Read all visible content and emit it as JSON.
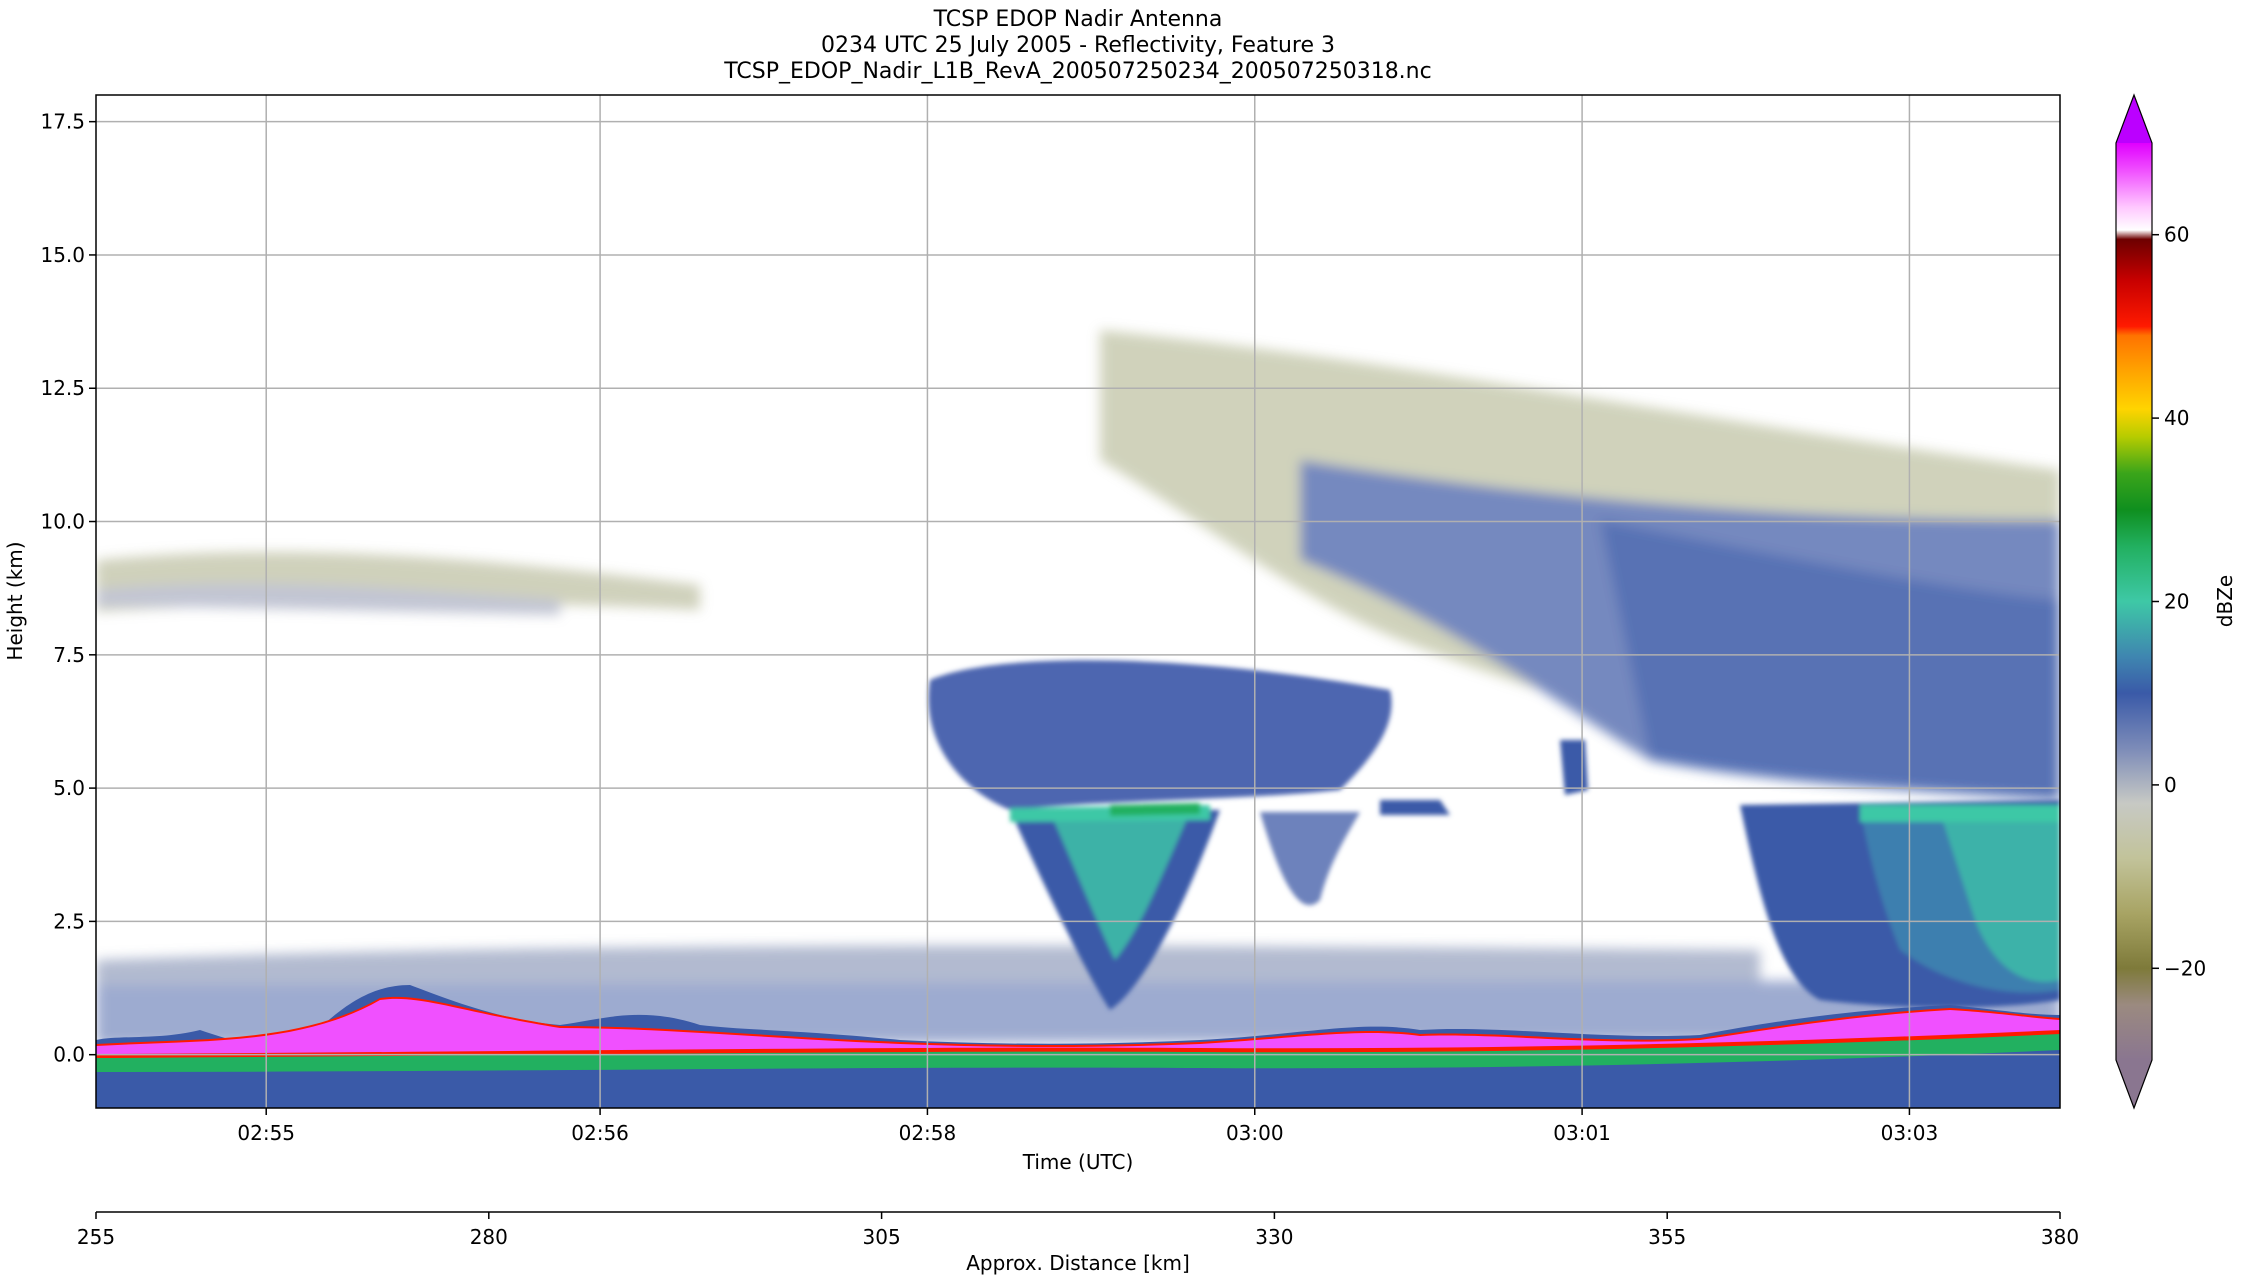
{
  "chart_data": {
    "type": "heatmap",
    "title": [
      "TCSP EDOP Nadir Antenna",
      "0234 UTC 25 July 2005 - Reflectivity, Feature 3",
      "TCSP_EDOP_Nadir_L1B_RevA_200507250234_200507250318.nc"
    ],
    "xlabel": "Time (UTC)",
    "ylabel": "Height (km)",
    "x2label": "Approx. Distance [km]",
    "colorbar_label": "dBZe",
    "xlim_minutes": [
      0,
      6.0
    ],
    "ylim": [
      -1.0,
      18.0
    ],
    "xticks": [
      {
        "label": "02:55",
        "t": 0.52
      },
      {
        "label": "02:56",
        "t": 1.54
      },
      {
        "label": "02:58",
        "t": 2.54
      },
      {
        "label": "03:00",
        "t": 3.54
      },
      {
        "label": "03:01",
        "t": 4.54
      },
      {
        "label": "03:03",
        "t": 5.54
      }
    ],
    "yticks": [
      0.0,
      2.5,
      5.0,
      7.5,
      10.0,
      12.5,
      15.0,
      17.5
    ],
    "ytick_labels": [
      "0.0",
      "2.5",
      "5.0",
      "7.5",
      "10.0",
      "12.5",
      "15.0",
      "17.5"
    ],
    "distance_ticks": [
      255,
      280,
      305,
      330,
      355,
      380
    ],
    "distance_range": [
      255,
      380
    ],
    "colorbar": {
      "vmin": -30,
      "vmax": 70,
      "ticks": [
        -20,
        0,
        20,
        40,
        60
      ],
      "tick_labels": [
        "−20",
        "0",
        "20",
        "40",
        "60"
      ],
      "stops": [
        {
          "v": -30,
          "c": "#8a7690"
        },
        {
          "v": -24,
          "c": "#9b8a80"
        },
        {
          "v": -20,
          "c": "#7e7a3a"
        },
        {
          "v": -14,
          "c": "#a8a464"
        },
        {
          "v": -8,
          "c": "#c2c39a"
        },
        {
          "v": -2,
          "c": "#c7c9c4"
        },
        {
          "v": 4,
          "c": "#7c8bb8"
        },
        {
          "v": 10,
          "c": "#3a5aa8"
        },
        {
          "v": 14,
          "c": "#3f86b0"
        },
        {
          "v": 20,
          "c": "#3ec8a6"
        },
        {
          "v": 26,
          "c": "#22b060"
        },
        {
          "v": 30,
          "c": "#0f8f1f"
        },
        {
          "v": 34,
          "c": "#3ba51a"
        },
        {
          "v": 38,
          "c": "#b7cc00"
        },
        {
          "v": 41,
          "c": "#ffd400"
        },
        {
          "v": 45,
          "c": "#ffa500"
        },
        {
          "v": 49,
          "c": "#ff7300"
        },
        {
          "v": 50,
          "c": "#ff1a00"
        },
        {
          "v": 55,
          "c": "#c80000"
        },
        {
          "v": 58,
          "c": "#8b0000"
        },
        {
          "v": 59.5,
          "c": "#6e0000"
        },
        {
          "v": 60.5,
          "c": "#ffffff"
        },
        {
          "v": 63,
          "c": "#ffc8ff"
        },
        {
          "v": 67,
          "c": "#f050ff"
        },
        {
          "v": 70,
          "c": "#e000ff"
        }
      ],
      "under_color": "#8a7690",
      "over_color": "#bb00ff"
    }
  }
}
